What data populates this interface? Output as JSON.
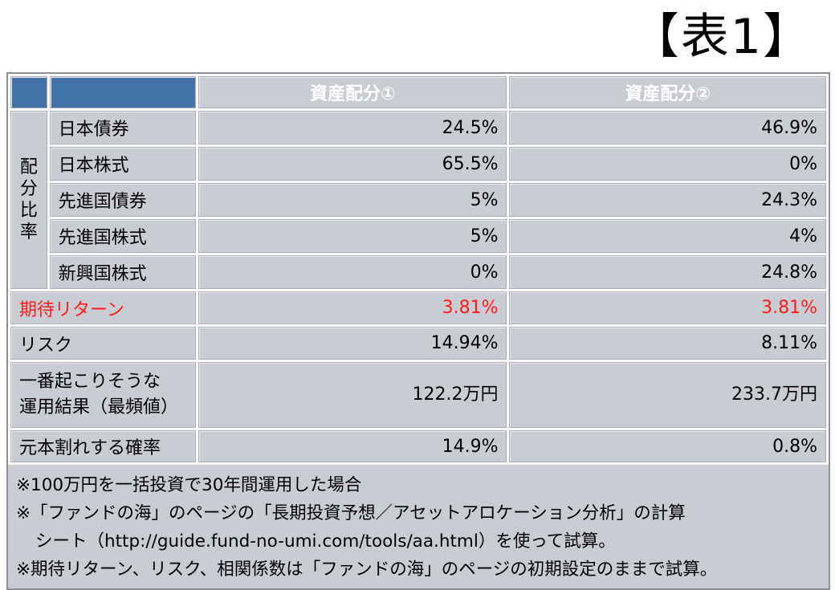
{
  "title": "【表1】",
  "table": {
    "header": [
      "資産配分①",
      "資産配分②"
    ],
    "group_label": [
      "配",
      "分",
      "比",
      "率"
    ],
    "allocation_rows": [
      {
        "label": "日本債券",
        "values": [
          "24.5%",
          "46.9%"
        ]
      },
      {
        "label": "日本株式",
        "values": [
          "65.5%",
          "0%"
        ]
      },
      {
        "label": "先進国債券",
        "values": [
          "5%",
          "24.3%"
        ]
      },
      {
        "label": "先進国株式",
        "values": [
          "5%",
          "4%"
        ]
      },
      {
        "label": "新興国株式",
        "values": [
          "0%",
          "24.8%"
        ]
      }
    ],
    "expected_return": {
      "label": "期待リターン",
      "values": [
        "3.81%",
        "3.81%"
      ],
      "color": "#ff1a1a"
    },
    "risk": {
      "label": "リスク",
      "values": [
        "14.94%",
        "8.11%"
      ]
    },
    "mode_result": {
      "label_line1": "一番起こりそうな",
      "label_line2": "運用結果（最頻値）",
      "values": [
        "122.2万円",
        "233.7万円"
      ]
    },
    "loss_probability": {
      "label": "元本割れする確率",
      "values": [
        "14.9%",
        "0.8%"
      ]
    }
  },
  "notes": [
    "※100万円を一括投資で30年間運用した場合",
    "※「ファンドの海」のページの「長期投資予想／アセットアロケーション分析」の計算",
    "シート（http://guide.fund-no-umi.com/tools/aa.html）を使って試算。",
    "※期待リターン、リスク、相関係数は「ファンドの海」のページの初期設定のままで試算。"
  ],
  "colors": {
    "header": "#4a7bb2",
    "cell": "#c9ccd3",
    "accent_red": "#ff1a1a"
  }
}
